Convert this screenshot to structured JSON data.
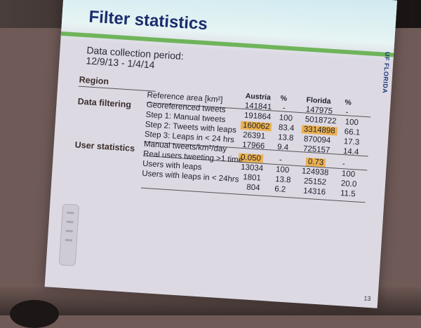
{
  "slide": {
    "title": "Filter statistics",
    "period_line1": "Data collection period:",
    "period_line2": "12/9/13 - 1/4/14",
    "logo_text": "UF FLORIDA",
    "page_number": "13",
    "col_region": "Region",
    "col_austria": "Austria",
    "col_pct1": "%",
    "col_florida": "Florida",
    "col_pct2": "%",
    "section_filter": "Data filtering",
    "section_user": "User statistics",
    "rows": [
      {
        "label": "Reference area [km²]",
        "a": "141841",
        "ap": "-",
        "f": "147975",
        "fp": "-"
      },
      {
        "label": "Georeferenced tweets",
        "a": "191864",
        "ap": "100",
        "f": "5018722",
        "fp": "100"
      },
      {
        "label": "Step 1: Manual tweets",
        "a": "160062",
        "ap": "83.4",
        "f": "3314898",
        "fp": "66.1"
      },
      {
        "label": "Step 2: Tweets with leaps",
        "a": "26391",
        "ap": "13.8",
        "f": "870094",
        "fp": "17.3"
      },
      {
        "label": "Step 3: Leaps in < 24 hrs",
        "a": "17966",
        "ap": "9.4",
        "f": "725157",
        "fp": "14.4"
      },
      {
        "label": "Manual tweets/km²/day",
        "a": "0.050",
        "ap": "-",
        "f": "0.73",
        "fp": "-"
      },
      {
        "label": "Real users tweeting >1 time",
        "a": "13034",
        "ap": "100",
        "f": "124938",
        "fp": "100"
      },
      {
        "label": "Users with leaps",
        "a": "1801",
        "ap": "13.8",
        "f": "25152",
        "fp": "20.0"
      },
      {
        "label": "Users with leaps in < 24hrs",
        "a": "804",
        "ap": "6.2",
        "f": "14316",
        "fp": "11.5"
      }
    ],
    "highlight_color": "#eab152"
  }
}
